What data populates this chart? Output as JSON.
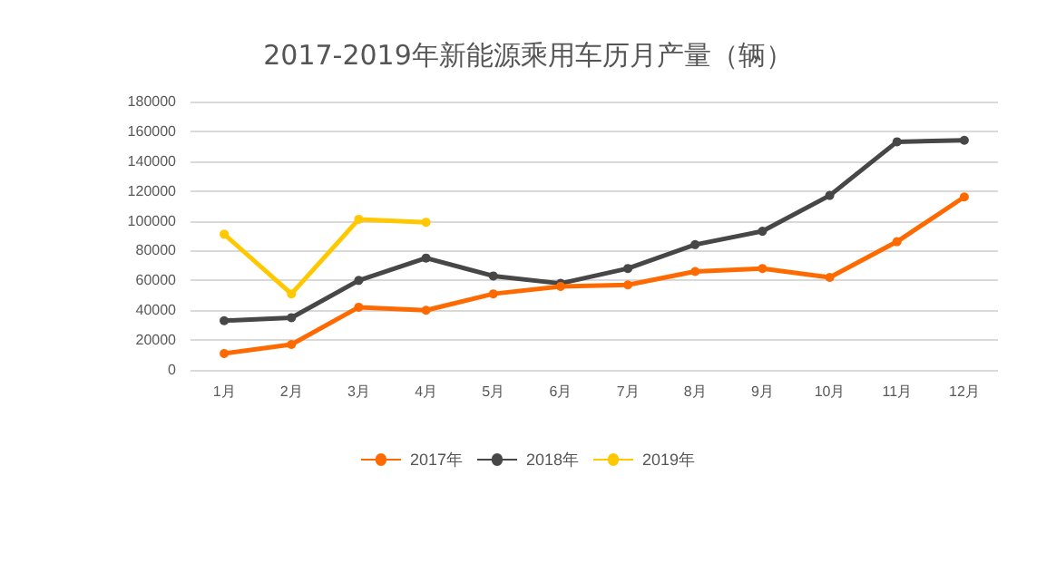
{
  "chart_data": {
    "type": "line",
    "title": "2017-2019年新能源乘用车历月产量（辆）",
    "categories": [
      "1月",
      "2月",
      "3月",
      "4月",
      "5月",
      "6月",
      "7月",
      "8月",
      "9月",
      "10月",
      "11月",
      "12月"
    ],
    "series": [
      {
        "name": "2017年",
        "color": "#ff6a00",
        "values": [
          11000,
          17000,
          42000,
          40000,
          51000,
          56000,
          57000,
          66000,
          68000,
          62000,
          86000,
          116000
        ]
      },
      {
        "name": "2018年",
        "color": "#474747",
        "values": [
          33000,
          35000,
          60000,
          75000,
          63000,
          58000,
          68000,
          84000,
          93000,
          117000,
          153000,
          154000
        ]
      },
      {
        "name": "2019年",
        "color": "#ffc800",
        "values": [
          91000,
          51000,
          101000,
          99000,
          null,
          null,
          null,
          null,
          null,
          null,
          null,
          null
        ]
      }
    ],
    "ylim": [
      0,
      180000
    ],
    "yticks": [
      0,
      20000,
      40000,
      60000,
      80000,
      100000,
      120000,
      140000,
      160000,
      180000
    ],
    "grid": "y",
    "legend": "bottom",
    "marker": "circle",
    "line_style": "solid"
  }
}
